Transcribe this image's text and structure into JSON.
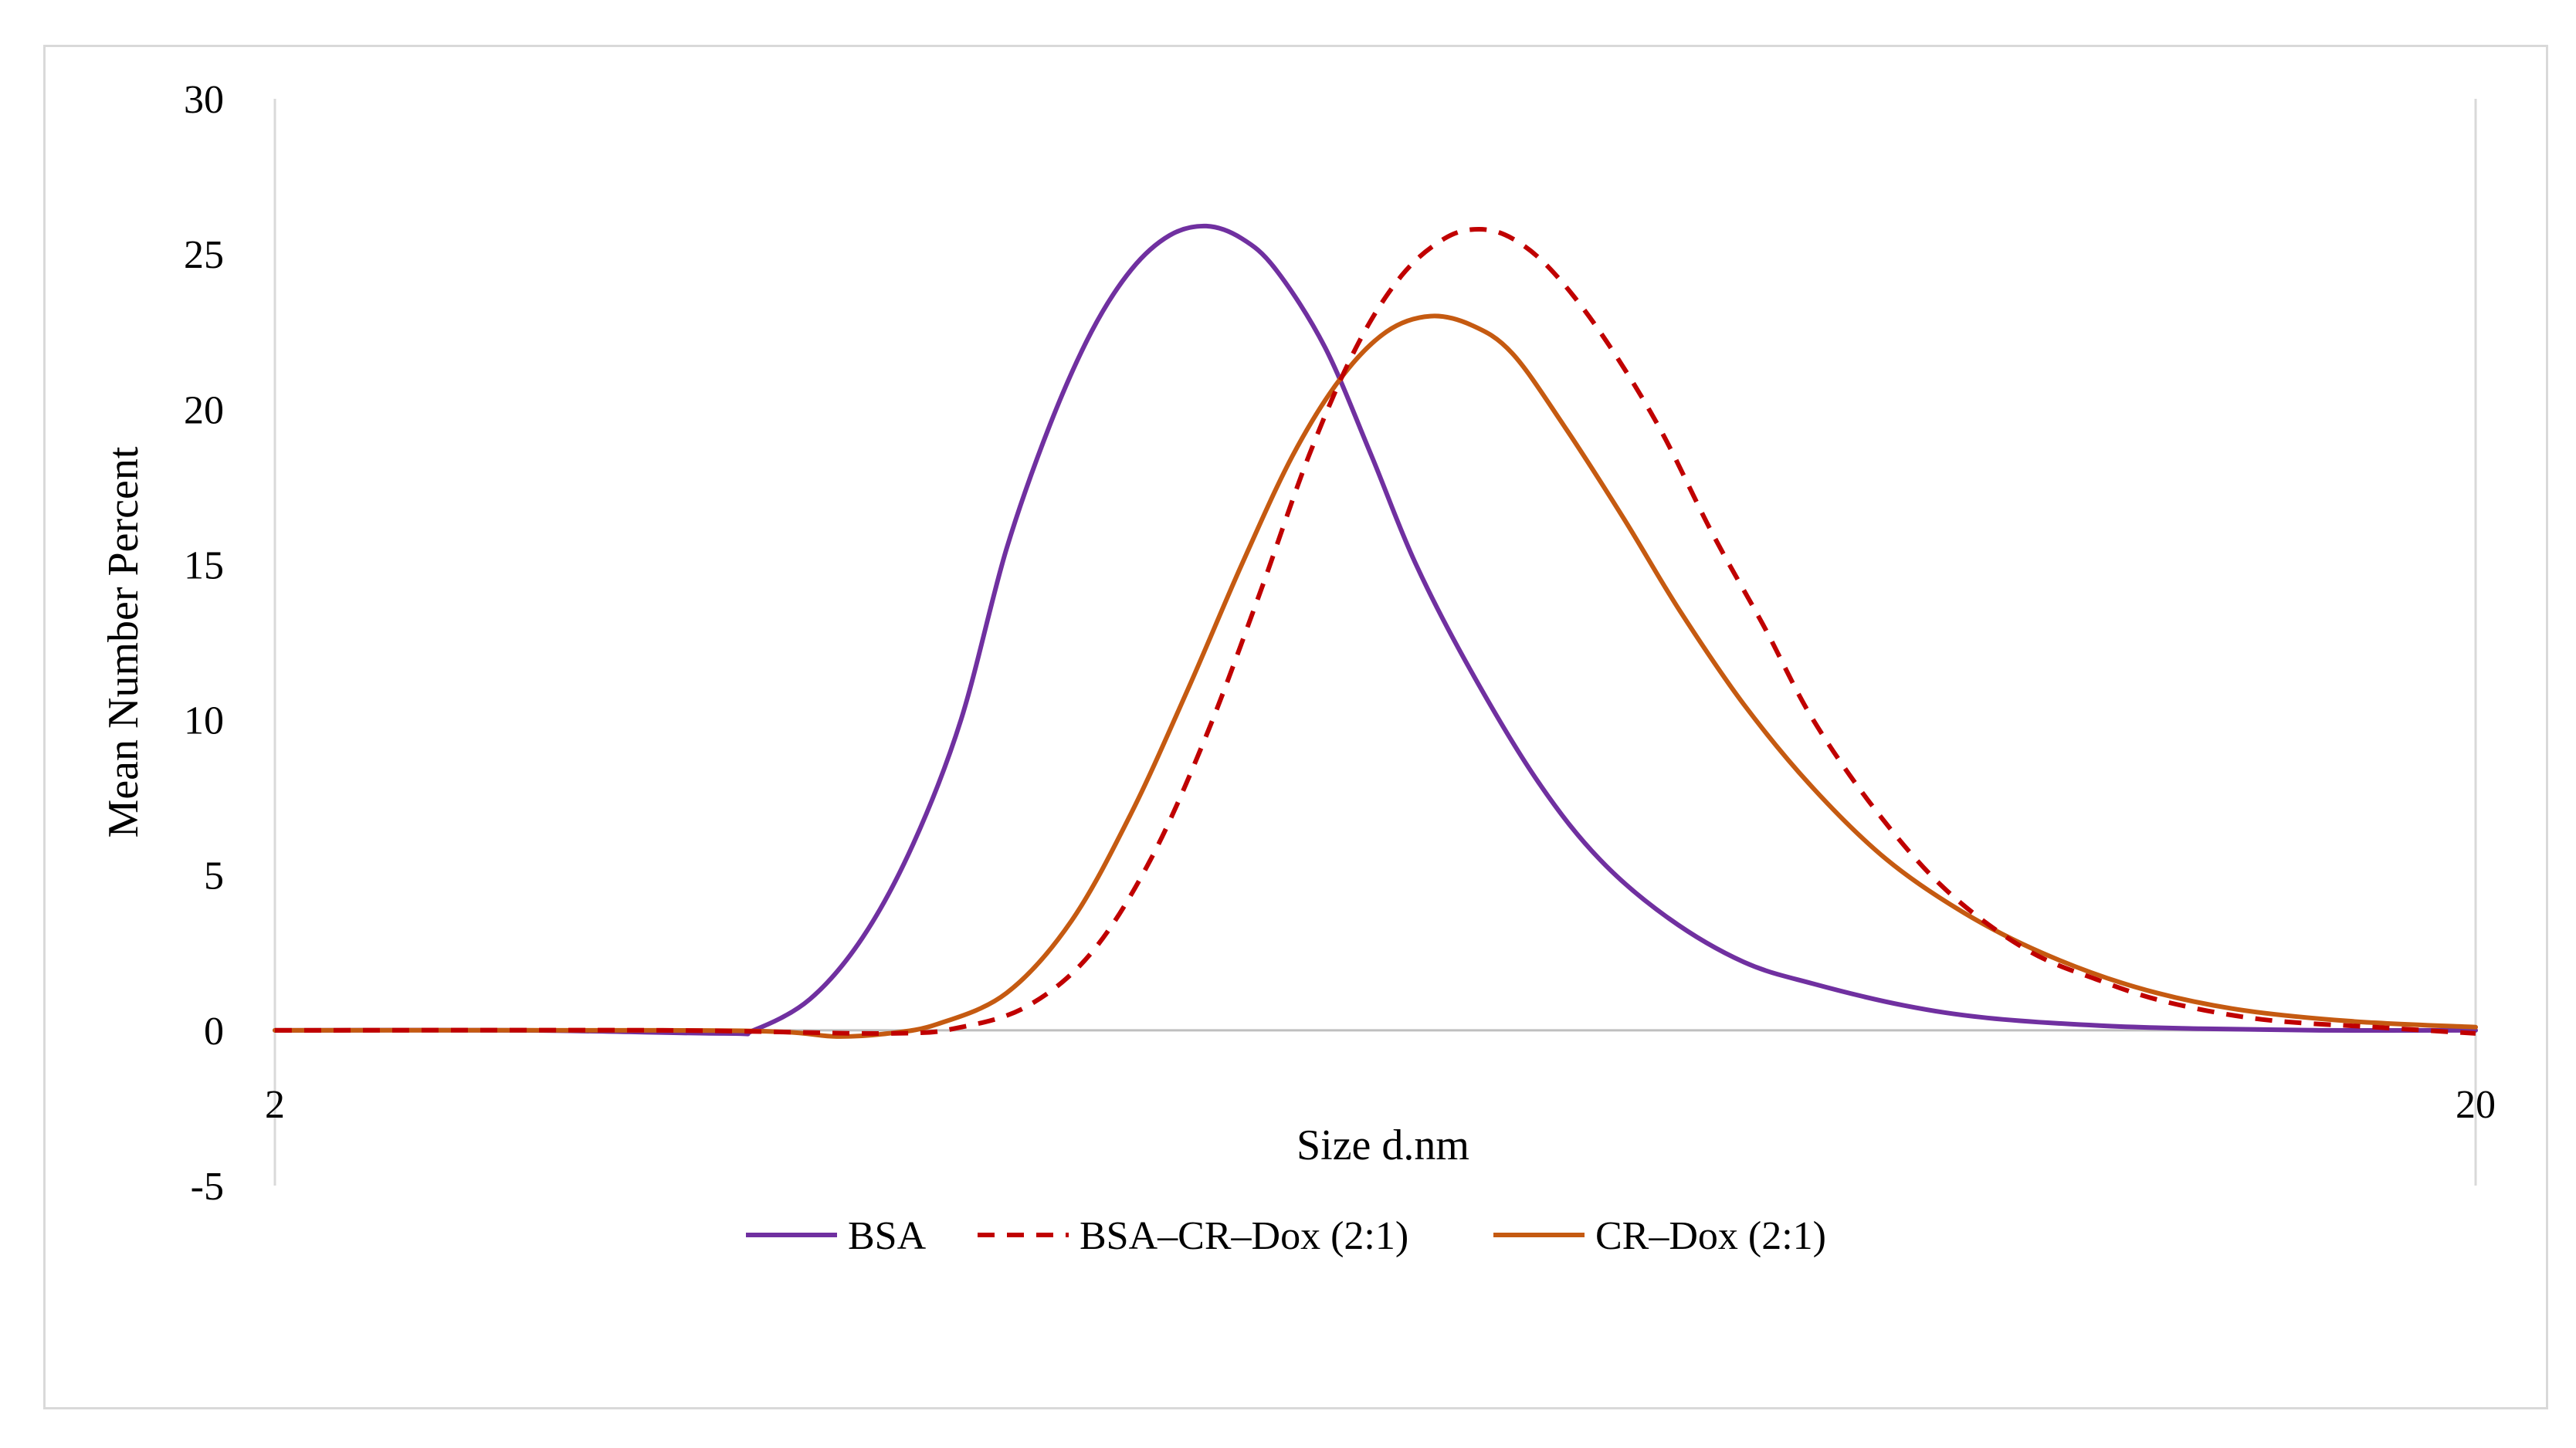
{
  "chart_data": {
    "type": "line",
    "title": "",
    "xlabel": "Size d.nm",
    "ylabel": "Mean Number Percent",
    "x_scale": "log",
    "xlim": [
      2,
      20
    ],
    "ylim": [
      -5,
      30
    ],
    "x_ticks": [
      "2",
      "20"
    ],
    "y_ticks": [
      "30",
      "25",
      "20",
      "15",
      "10",
      "5",
      "0",
      "-5"
    ],
    "y_tick_values": [
      30,
      25,
      20,
      15,
      10,
      5,
      0,
      -5
    ],
    "x_tick_values": [
      2,
      20
    ],
    "grid": false,
    "legend_position": "bottom",
    "series": [
      {
        "name": "BSA",
        "color": "#7030A0",
        "dash": "solid",
        "points": [
          [
            2.0,
            0
          ],
          [
            2.6,
            0
          ],
          [
            3.2,
            -0.1
          ],
          [
            3.3,
            0
          ],
          [
            3.5,
            1.0
          ],
          [
            3.7,
            3.0
          ],
          [
            3.9,
            6.0
          ],
          [
            4.1,
            10.0
          ],
          [
            4.3,
            15.5
          ],
          [
            4.5,
            19.5
          ],
          [
            4.7,
            22.5
          ],
          [
            4.9,
            24.5
          ],
          [
            5.1,
            25.6
          ],
          [
            5.3,
            25.9
          ],
          [
            5.5,
            25.5
          ],
          [
            5.7,
            24.5
          ],
          [
            6.0,
            22.0
          ],
          [
            6.3,
            18.5
          ],
          [
            6.6,
            15.0
          ],
          [
            7.0,
            11.5
          ],
          [
            7.5,
            8.0
          ],
          [
            8.0,
            5.5
          ],
          [
            8.6,
            3.6
          ],
          [
            9.3,
            2.2
          ],
          [
            10.0,
            1.5
          ],
          [
            11.0,
            0.8
          ],
          [
            12.0,
            0.4
          ],
          [
            13.5,
            0.15
          ],
          [
            15.0,
            0.05
          ],
          [
            17.0,
            0
          ],
          [
            20.0,
            0
          ]
        ]
      },
      {
        "name": "BSA–CR–Dox (2:1)",
        "color": "#C00000",
        "dash": "dashed",
        "points": [
          [
            2.0,
            0
          ],
          [
            3.0,
            0
          ],
          [
            3.8,
            -0.1
          ],
          [
            4.1,
            0.1
          ],
          [
            4.4,
            0.8
          ],
          [
            4.7,
            2.5
          ],
          [
            5.0,
            5.5
          ],
          [
            5.3,
            9.5
          ],
          [
            5.6,
            14.0
          ],
          [
            5.9,
            18.5
          ],
          [
            6.2,
            22.0
          ],
          [
            6.5,
            24.3
          ],
          [
            6.8,
            25.5
          ],
          [
            7.05,
            25.8
          ],
          [
            7.3,
            25.5
          ],
          [
            7.6,
            24.5
          ],
          [
            8.0,
            22.5
          ],
          [
            8.5,
            19.5
          ],
          [
            9.0,
            16.0
          ],
          [
            9.5,
            13.0
          ],
          [
            10.0,
            10.0
          ],
          [
            10.7,
            7.0
          ],
          [
            11.5,
            4.5
          ],
          [
            12.5,
            2.6
          ],
          [
            13.5,
            1.6
          ],
          [
            14.5,
            0.9
          ],
          [
            16.0,
            0.35
          ],
          [
            18.0,
            0.1
          ],
          [
            20.0,
            -0.1
          ]
        ]
      },
      {
        "name": "CR–Dox (2:1)",
        "color": "#C55A11",
        "dash": "solid",
        "points": [
          [
            2.0,
            0
          ],
          [
            3.0,
            0
          ],
          [
            3.4,
            -0.05
          ],
          [
            3.6,
            -0.2
          ],
          [
            3.8,
            -0.1
          ],
          [
            4.0,
            0.2
          ],
          [
            4.3,
            1.2
          ],
          [
            4.6,
            3.5
          ],
          [
            4.9,
            7.0
          ],
          [
            5.2,
            11.0
          ],
          [
            5.5,
            15.0
          ],
          [
            5.8,
            18.5
          ],
          [
            6.1,
            21.0
          ],
          [
            6.4,
            22.5
          ],
          [
            6.7,
            23.0
          ],
          [
            7.0,
            22.7
          ],
          [
            7.3,
            21.8
          ],
          [
            7.7,
            19.5
          ],
          [
            8.2,
            16.5
          ],
          [
            8.7,
            13.5
          ],
          [
            9.3,
            10.5
          ],
          [
            10.0,
            7.8
          ],
          [
            10.8,
            5.5
          ],
          [
            11.7,
            3.8
          ],
          [
            12.7,
            2.5
          ],
          [
            14.0,
            1.4
          ],
          [
            15.5,
            0.7
          ],
          [
            17.5,
            0.3
          ],
          [
            20.0,
            0.1
          ]
        ]
      }
    ]
  }
}
